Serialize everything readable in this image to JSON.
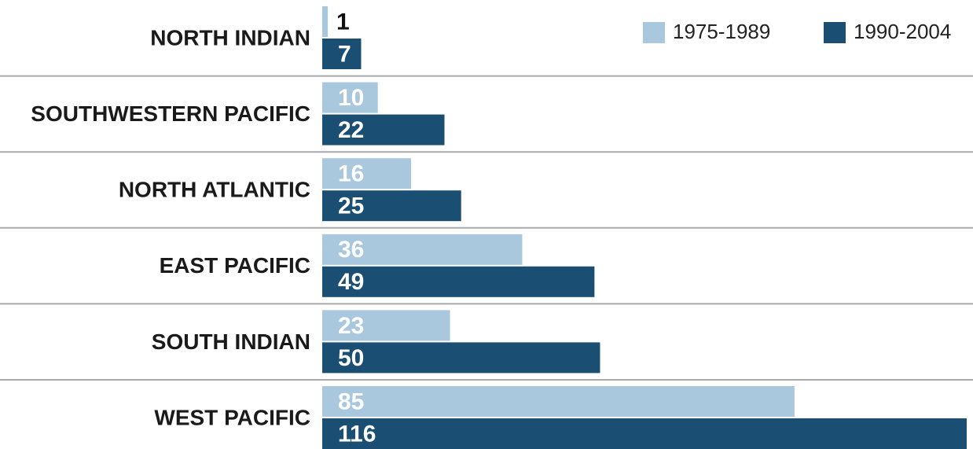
{
  "chart_data": {
    "type": "bar",
    "orientation": "horizontal",
    "categories": [
      "NORTH INDIAN",
      "SOUTHWESTERN PACIFIC",
      "NORTH ATLANTIC",
      "EAST PACIFIC",
      "SOUTH INDIAN",
      "WEST PACIFIC"
    ],
    "series": [
      {
        "name": "1975-1989",
        "color": "#a9c8dd",
        "values": [
          1,
          10,
          16,
          36,
          23,
          85
        ]
      },
      {
        "name": "1990-2004",
        "color": "#1a4e72",
        "values": [
          7,
          22,
          25,
          49,
          50,
          116
        ]
      }
    ],
    "xlim": [
      0,
      116
    ]
  }
}
